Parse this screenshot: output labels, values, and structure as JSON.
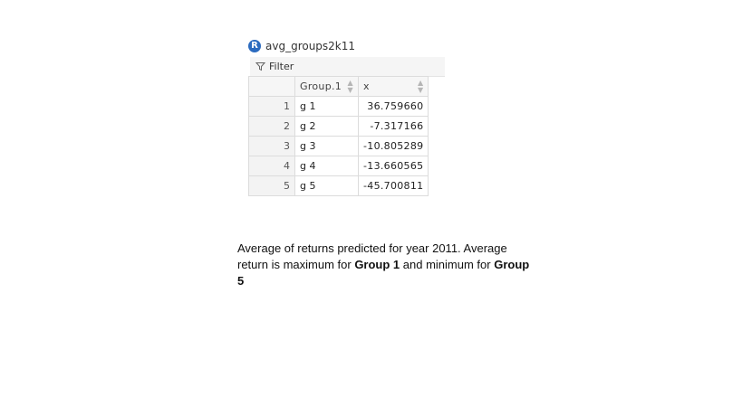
{
  "window": {
    "title": "avg_groups2k11",
    "icon": "r-logo-icon"
  },
  "toolbar": {
    "filter_label": "Filter",
    "filter_icon": "funnel-icon"
  },
  "table": {
    "columns": [
      "",
      "Group.1",
      "x"
    ],
    "rows": [
      {
        "index": "1",
        "group": "g 1",
        "x": "36.759660"
      },
      {
        "index": "2",
        "group": "g 2",
        "x": "-7.317166"
      },
      {
        "index": "3",
        "group": "g 3",
        "x": "-10.805289"
      },
      {
        "index": "4",
        "group": "g 4",
        "x": "-13.660565"
      },
      {
        "index": "5",
        "group": "g 5",
        "x": "-45.700811"
      }
    ]
  },
  "caption": {
    "text_1": "Average of returns predicted for year 2011. Average return is maximum for ",
    "bold_1": "Group 1",
    "text_2": " and minimum for ",
    "bold_2": "Group 5"
  }
}
